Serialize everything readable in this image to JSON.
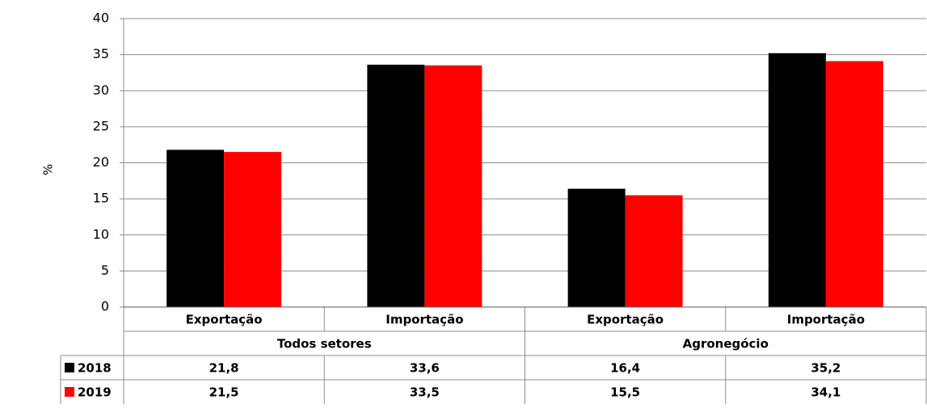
{
  "chart_data": {
    "type": "bar",
    "y_label": "%",
    "categories": [
      "Exportação",
      "Importação",
      "Exportação",
      "Importação"
    ],
    "groups": [
      "Todos setores",
      "Agronegócio"
    ],
    "series": [
      {
        "name": "2018",
        "color": "#000000",
        "values": [
          21.8,
          33.6,
          16.4,
          35.2
        ],
        "value_labels": [
          "21,8",
          "33,6",
          "16,4",
          "35,2"
        ]
      },
      {
        "name": "2019",
        "color": "#ff0000",
        "values": [
          21.5,
          33.5,
          15.5,
          34.1
        ],
        "value_labels": [
          "21,5",
          "33,5",
          "15,5",
          "34,1"
        ]
      }
    ],
    "ylim": [
      0,
      40
    ],
    "yticks": [
      0,
      5,
      10,
      15,
      20,
      25,
      30,
      35,
      40
    ],
    "grid": true
  }
}
